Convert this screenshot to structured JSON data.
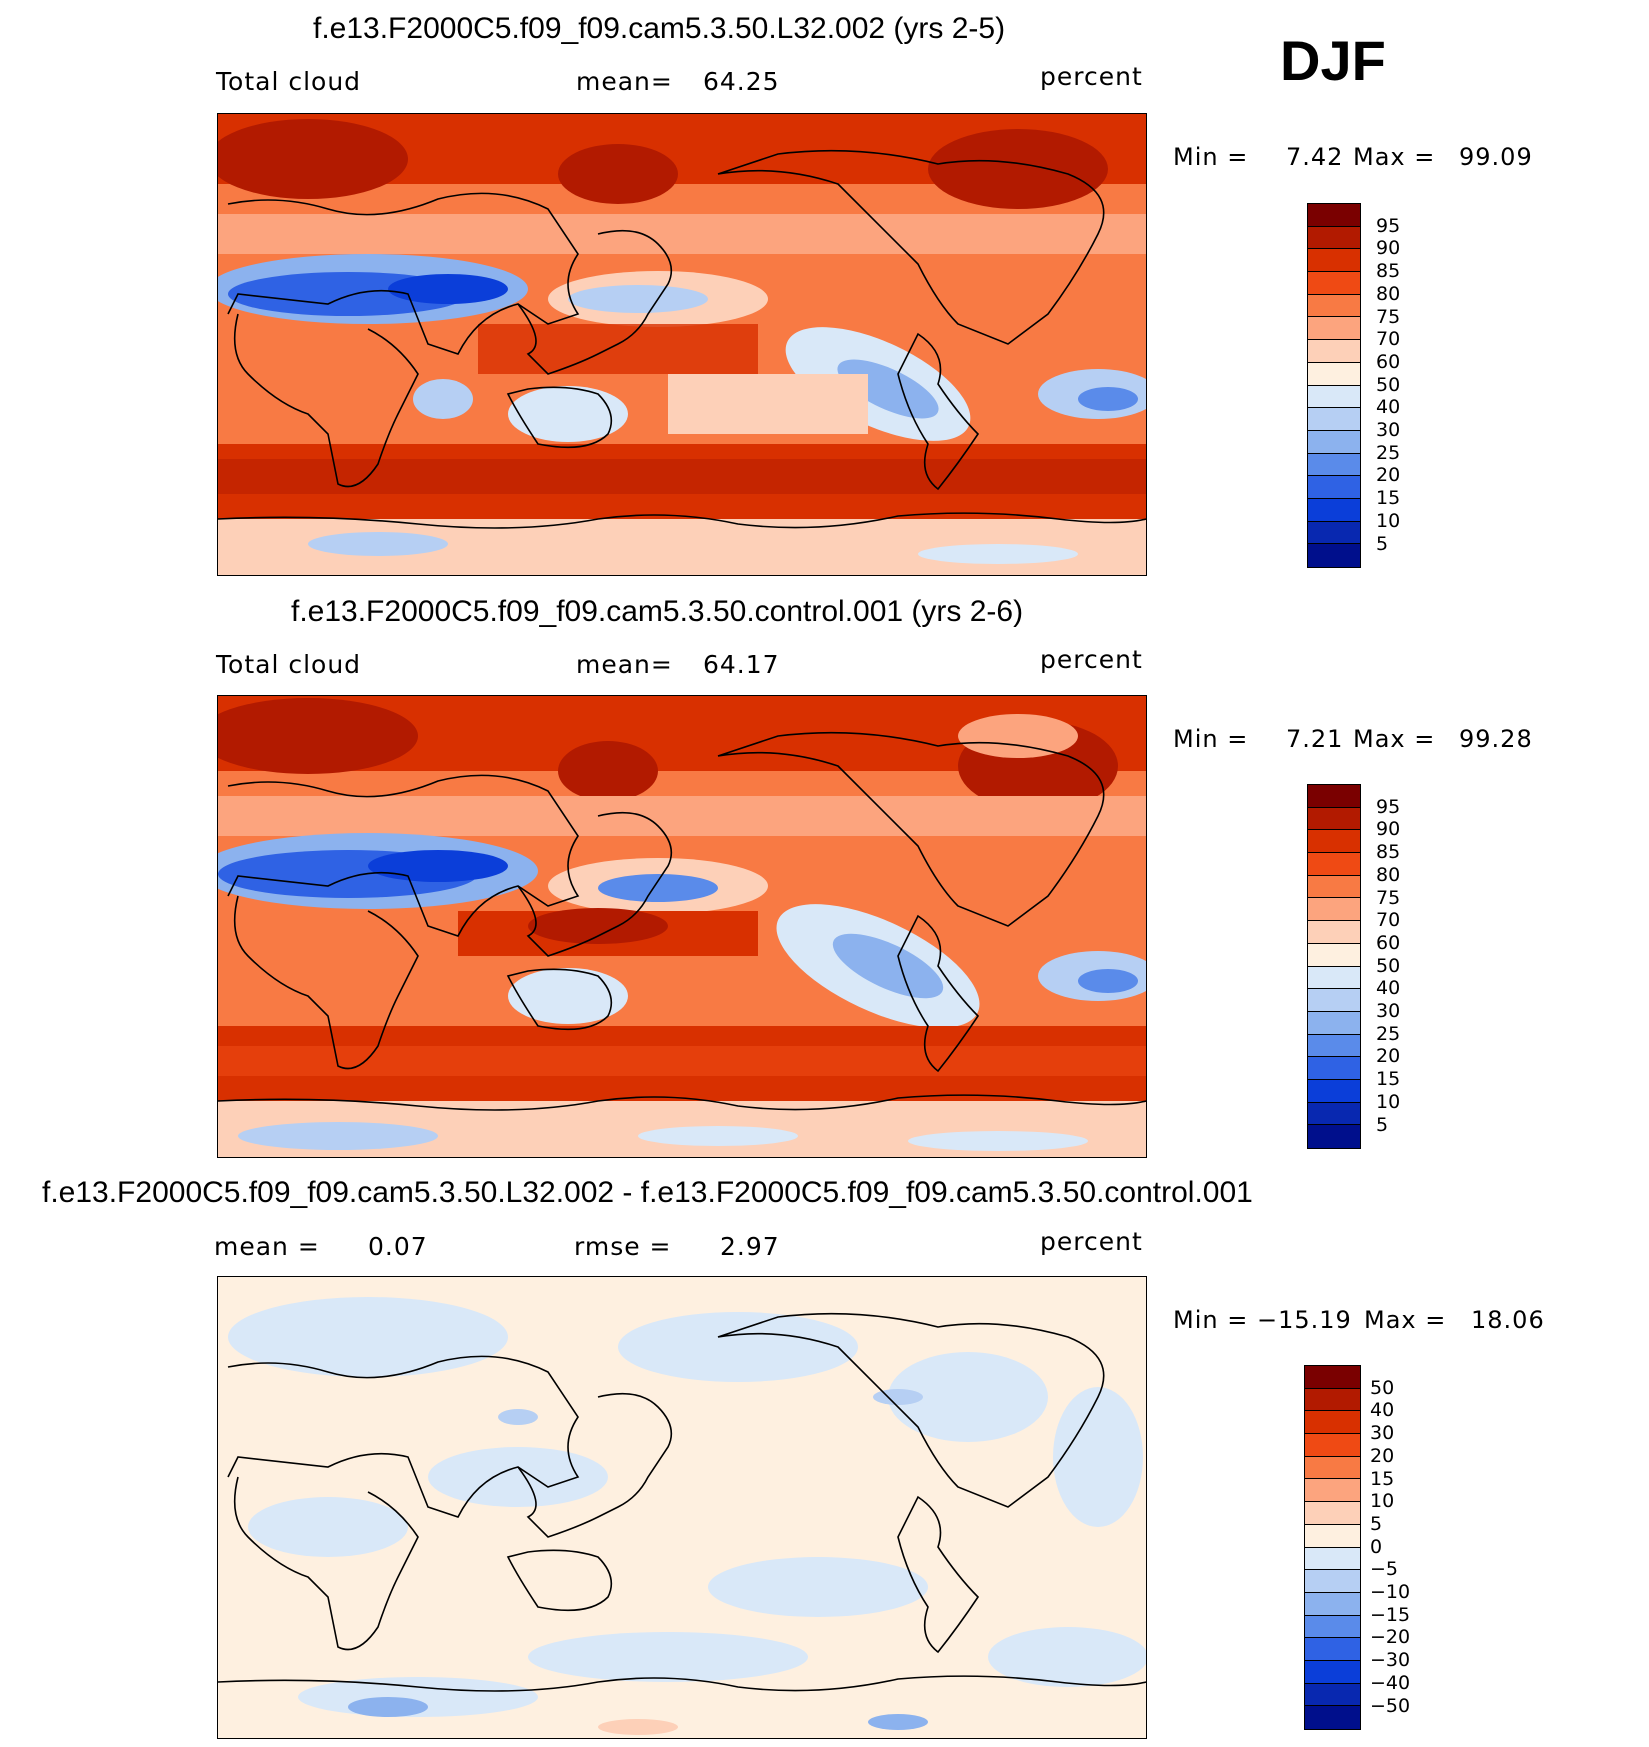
{
  "season": "DJF",
  "panels": [
    {
      "title": "f.e13.F2000C5.f09_f09.cam5.3.50.L32.002 (yrs 2-5)",
      "left_label": "Total cloud",
      "center_label": "mean=",
      "center_value": "64.25",
      "units": "percent",
      "min_label": "Min =",
      "min_value": "7.42",
      "max_label": "Max =",
      "max_value": "99.09",
      "colorbar": {
        "labels": [
          "95",
          "90",
          "85",
          "80",
          "75",
          "70",
          "60",
          "50",
          "40",
          "30",
          "25",
          "20",
          "15",
          "10",
          "5"
        ],
        "colors": [
          "#7a0000",
          "#b21a00",
          "#d83000",
          "#ef4a14",
          "#f87a44",
          "#fca47e",
          "#fdd0b8",
          "#fef0e0",
          "#d9e8f8",
          "#b6cff3",
          "#8cb2ee",
          "#5a8bea",
          "#2f62e4",
          "#0b3ed9",
          "#0828b0",
          "#000f8c"
        ]
      }
    },
    {
      "title": "f.e13.F2000C5.f09_f09.cam5.3.50.control.001 (yrs 2-6)",
      "left_label": "Total cloud",
      "center_label": "mean=",
      "center_value": "64.17",
      "units": "percent",
      "min_label": "Min =",
      "min_value": "7.21",
      "max_label": "Max =",
      "max_value": "99.28",
      "colorbar": {
        "labels": [
          "95",
          "90",
          "85",
          "80",
          "75",
          "70",
          "60",
          "50",
          "40",
          "30",
          "25",
          "20",
          "15",
          "10",
          "5"
        ],
        "colors": [
          "#7a0000",
          "#b21a00",
          "#d83000",
          "#ef4a14",
          "#f87a44",
          "#fca47e",
          "#fdd0b8",
          "#fef0e0",
          "#d9e8f8",
          "#b6cff3",
          "#8cb2ee",
          "#5a8bea",
          "#2f62e4",
          "#0b3ed9",
          "#0828b0",
          "#000f8c"
        ]
      }
    },
    {
      "title": "f.e13.F2000C5.f09_f09.cam5.3.50.L32.002 - f.e13.F2000C5.f09_f09.cam5.3.50.control.001",
      "left_label": "mean =",
      "left_value": "0.07",
      "center_label": "rmse =",
      "center_value": "2.97",
      "units": "percent",
      "min_label": "Min =",
      "min_value": "−15.19",
      "max_label": "Max =",
      "max_value": "18.06",
      "colorbar": {
        "labels": [
          "50",
          "40",
          "30",
          "20",
          "15",
          "10",
          "5",
          "0",
          "−5",
          "−10",
          "−15",
          "−20",
          "−30",
          "−40",
          "−50"
        ],
        "colors": [
          "#7a0000",
          "#b21a00",
          "#d83000",
          "#ef4a14",
          "#f87a44",
          "#fca47e",
          "#fdd0b8",
          "#fef0e0",
          "#d9e8f8",
          "#b6cff3",
          "#8cb2ee",
          "#5a8bea",
          "#2f62e4",
          "#0b3ed9",
          "#0828b0",
          "#000f8c"
        ]
      }
    }
  ]
}
